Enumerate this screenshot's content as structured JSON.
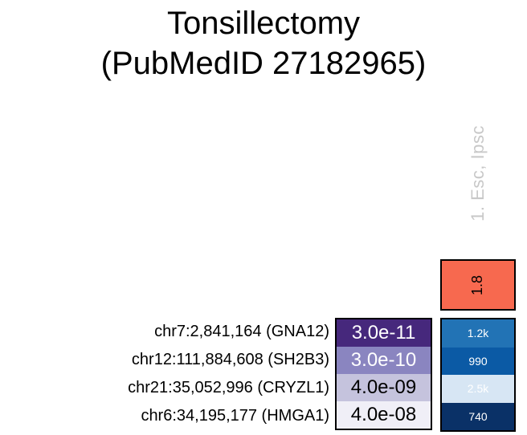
{
  "title": {
    "line1": "Tonsillectomy",
    "line2": "(PubMedID 27182965)"
  },
  "column": {
    "label": "1. Esc, Ipsc",
    "label_color": "#C8C8C8",
    "header_value": "1.8",
    "header_bg": "#F7694F",
    "header_fg": "#000000"
  },
  "rows": [
    {
      "label": "chr7:2,841,164 (GNA12)",
      "pvalue": "3.0e-11",
      "pvalue_bg": "#46287C",
      "pvalue_fg": "#FFFFFF",
      "count": "1.2k",
      "count_bg": "#2273B5",
      "count_fg": "#FFFFFF"
    },
    {
      "label": "chr12:111,884,608 (SH2B3)",
      "pvalue": "3.0e-10",
      "pvalue_bg": "#8A85C0",
      "pvalue_fg": "#FFFFFF",
      "count": "990",
      "count_bg": "#0B5AA5",
      "count_fg": "#FFFFFF"
    },
    {
      "label": "chr21:35,052,996 (CRYZL1)",
      "pvalue": "4.0e-09",
      "pvalue_bg": "#C5C3DD",
      "pvalue_fg": "#000000",
      "count": "2.5k",
      "count_bg": "#D7E6F4",
      "count_fg": "#FFFFFF"
    },
    {
      "label": "chr6:34,195,177 (HMGA1)",
      "pvalue": "4.0e-08",
      "pvalue_bg": "#F0EFF7",
      "pvalue_fg": "#000000",
      "count": "740",
      "count_bg": "#0A3167",
      "count_fg": "#FFFFFF"
    }
  ],
  "chart_data": {
    "type": "heatmap",
    "title": "Tonsillectomy (PubMedID 27182965)",
    "columns": [
      "1. Esc, Ipsc"
    ],
    "column_header_values": [
      1.8
    ],
    "column_header_color": "#F7694F",
    "rows": [
      "chr7:2,841,164 (GNA12)",
      "chr12:111,884,608 (SH2B3)",
      "chr21:35,052,996 (CRYZL1)",
      "chr6:34,195,177 (HMGA1)"
    ],
    "pvalues": [
      3e-11,
      3e-10,
      4e-09,
      4e-08
    ],
    "pvalue_labels": [
      "3.0e-11",
      "3.0e-10",
      "4.0e-09",
      "4.0e-08"
    ],
    "counts": [
      1200,
      990,
      2500,
      740
    ],
    "count_labels": [
      "1.2k",
      "990",
      "2.5k",
      "740"
    ],
    "pvalue_cell_colors": [
      "#46287C",
      "#8A85C0",
      "#C5C3DD",
      "#F0EFF7"
    ],
    "count_cell_colors": [
      "#2273B5",
      "#0B5AA5",
      "#D7E6F4",
      "#0A3167"
    ],
    "legend_position": "none",
    "grid": false
  }
}
